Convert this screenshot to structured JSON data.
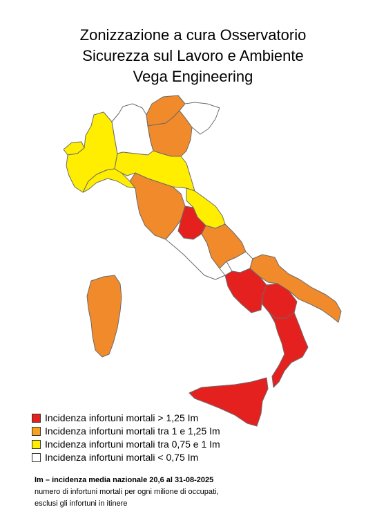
{
  "title": {
    "line1": "Zonizzazione a cura Osservatorio",
    "line2": "Sicurezza sul Lavoro e Ambiente",
    "line3": "Vega Engineering"
  },
  "colors": {
    "red": "#e5211f",
    "orange": "#f08a2b",
    "yellow": "#ffee00",
    "white": "#ffffff",
    "border": "#6b6b6b"
  },
  "legend": [
    {
      "color": "#e5211f",
      "label": "Incidenza infortuni mortali > 1,25 Im"
    },
    {
      "color": "#f7a21d",
      "label": "Incidenza infortuni mortali tra 1 e 1,25 Im"
    },
    {
      "color": "#ffee00",
      "label": "Incidenza infortuni mortali tra 0,75 e 1 Im"
    },
    {
      "color": "#ffffff",
      "label": "Incidenza infortuni mortali < 0,75 Im"
    }
  ],
  "note": {
    "line1": "Im – incidenza media nazionale 20,6 al 31-08-2025",
    "line2": "numero di infortuni mortali per ogni milione di occupati,",
    "line3": "esclusi gli infortuni in itinere"
  }
}
